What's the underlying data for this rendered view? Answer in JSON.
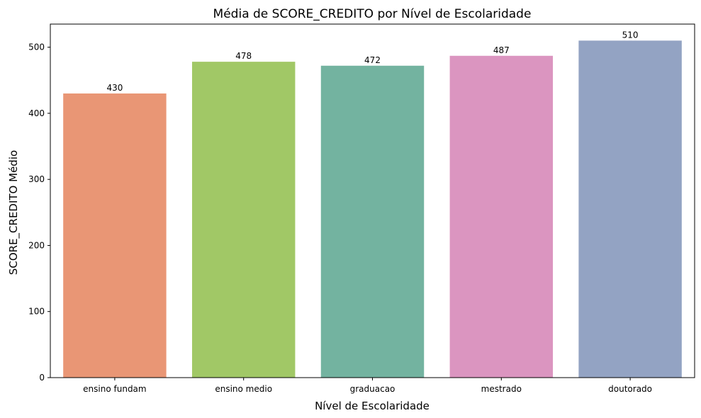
{
  "chart_data": {
    "type": "bar",
    "title": "Média de SCORE_CREDITO por Nível de Escolaridade",
    "xlabel": "Nível de Escolaridade",
    "ylabel": "SCORE_CREDITO Médio",
    "categories": [
      "ensino fundam",
      "ensino medio",
      "graduacao",
      "mestrado",
      "doutorado"
    ],
    "values": [
      430,
      478,
      472,
      487,
      510
    ],
    "data_labels": [
      "430",
      "478",
      "472",
      "487",
      "510"
    ],
    "colors": [
      "#e99675",
      "#a1c866",
      "#73b3a0",
      "#db95c0",
      "#93a3c3"
    ],
    "ylim": [
      0,
      535
    ],
    "yticks": [
      0,
      100,
      200,
      300,
      400,
      500
    ],
    "grid": false,
    "legend": "none"
  }
}
